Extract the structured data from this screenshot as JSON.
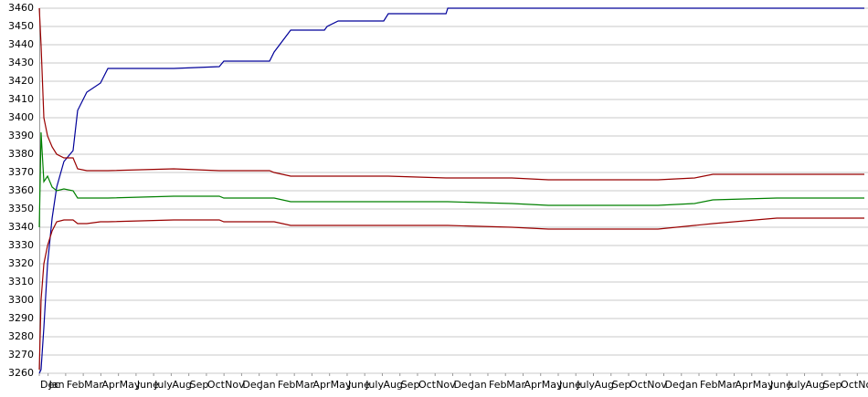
{
  "chart_data": {
    "type": "line",
    "x": [
      0,
      0.1,
      0.26,
      0.47,
      0.73,
      0.99,
      1.4,
      1.92,
      2.18,
      2.7,
      3.48,
      3.9,
      7.64,
      10.23,
      10.49,
      13.09,
      13.35,
      14.29,
      16.21,
      16.36,
      16.99,
      19.58,
      19.84,
      23.12,
      23.22,
      26.86,
      28.94,
      29.97,
      35.17,
      37.25,
      38.29,
      41.92,
      46.9
    ],
    "xlim": [
      0,
      46.9
    ],
    "xticks": [
      {
        "value": 0,
        "label": "Dec"
      },
      {
        "value": 0.5,
        "label": "Jan"
      },
      {
        "value": 1.5,
        "label": "Feb"
      },
      {
        "value": 2.5,
        "label": "Mar"
      },
      {
        "value": 3.5,
        "label": "Apr"
      },
      {
        "value": 4.5,
        "label": "May"
      },
      {
        "value": 5.5,
        "label": "June"
      },
      {
        "value": 6.5,
        "label": "July"
      },
      {
        "value": 7.5,
        "label": "Aug"
      },
      {
        "value": 8.5,
        "label": "Sep"
      },
      {
        "value": 9.5,
        "label": "Oct"
      },
      {
        "value": 10.5,
        "label": "Nov"
      },
      {
        "value": 11.5,
        "label": "Dec"
      },
      {
        "value": 12.5,
        "label": "Jan"
      },
      {
        "value": 13.5,
        "label": "Feb"
      },
      {
        "value": 14.5,
        "label": "Mar"
      },
      {
        "value": 15.5,
        "label": "Apr"
      },
      {
        "value": 16.5,
        "label": "May"
      },
      {
        "value": 17.5,
        "label": "June"
      },
      {
        "value": 18.5,
        "label": "July"
      },
      {
        "value": 19.5,
        "label": "Aug"
      },
      {
        "value": 20.5,
        "label": "Sep"
      },
      {
        "value": 21.5,
        "label": "Oct"
      },
      {
        "value": 22.5,
        "label": "Nov"
      },
      {
        "value": 23.5,
        "label": "Dec"
      },
      {
        "value": 24.5,
        "label": "Jan"
      },
      {
        "value": 25.5,
        "label": "Feb"
      },
      {
        "value": 26.5,
        "label": "Mar"
      },
      {
        "value": 27.5,
        "label": "Apr"
      },
      {
        "value": 28.5,
        "label": "May"
      },
      {
        "value": 29.5,
        "label": "June"
      },
      {
        "value": 30.5,
        "label": "July"
      },
      {
        "value": 31.5,
        "label": "Aug"
      },
      {
        "value": 32.5,
        "label": "Sep"
      },
      {
        "value": 33.5,
        "label": "Oct"
      },
      {
        "value": 34.5,
        "label": "Nov"
      },
      {
        "value": 35.5,
        "label": "Dec"
      },
      {
        "value": 36.5,
        "label": "Jan"
      },
      {
        "value": 37.5,
        "label": "Feb"
      },
      {
        "value": 38.5,
        "label": "Mar"
      },
      {
        "value": 39.5,
        "label": "Apr"
      },
      {
        "value": 40.5,
        "label": "May"
      },
      {
        "value": 41.5,
        "label": "June"
      },
      {
        "value": 42.5,
        "label": "July"
      },
      {
        "value": 43.5,
        "label": "Aug"
      },
      {
        "value": 44.5,
        "label": "Sep"
      },
      {
        "value": 45.5,
        "label": "Oct"
      },
      {
        "value": 46.5,
        "label": "Nov"
      }
    ],
    "ylim": [
      3260,
      3460
    ],
    "yticks": [
      3260,
      3270,
      3280,
      3290,
      3300,
      3310,
      3320,
      3330,
      3340,
      3350,
      3360,
      3370,
      3380,
      3390,
      3400,
      3410,
      3420,
      3430,
      3440,
      3450,
      3460
    ],
    "grid": true,
    "series": [
      {
        "color": "#000099",
        "values": [
          3260,
          3262,
          3285,
          3320,
          3345,
          3362,
          3376,
          3382,
          3404,
          3414,
          3419,
          3427,
          3427,
          3428,
          3431,
          3431,
          3436,
          3448,
          3448,
          3450,
          3453,
          3453,
          3457,
          3457,
          3460,
          3460,
          3460,
          3460,
          3460,
          3460,
          3460,
          3460,
          3460
        ]
      },
      {
        "color": "#990000",
        "values": [
          3460,
          3440,
          3400,
          3390,
          3384,
          3380,
          3378,
          3378,
          3372,
          3371,
          3371,
          3371,
          3372,
          3371,
          3371,
          3371,
          3370,
          3368,
          3368,
          3368,
          3368,
          3368,
          3368,
          3367,
          3367,
          3367,
          3366,
          3366,
          3366,
          3367,
          3369,
          3369,
          3369
        ]
      },
      {
        "color": "#008000",
        "values": [
          3340,
          3392,
          3365,
          3368,
          3362,
          3360,
          3361,
          3360,
          3356,
          3356,
          3356,
          3356,
          3357,
          3357,
          3356,
          3356,
          3356,
          3354,
          3354,
          3354,
          3354,
          3354,
          3354,
          3354,
          3354,
          3353,
          3352,
          3352,
          3352,
          3353,
          3355,
          3356,
          3356
        ]
      },
      {
        "color": "#990000",
        "values": [
          3262,
          3300,
          3320,
          3330,
          3338,
          3343,
          3344,
          3344,
          3342,
          3342,
          3343,
          3343,
          3344,
          3344,
          3343,
          3343,
          3343,
          3341,
          3341,
          3341,
          3341,
          3341,
          3341,
          3341,
          3341,
          3340,
          3339,
          3339,
          3339,
          3341,
          3342,
          3345,
          3345
        ]
      }
    ]
  }
}
